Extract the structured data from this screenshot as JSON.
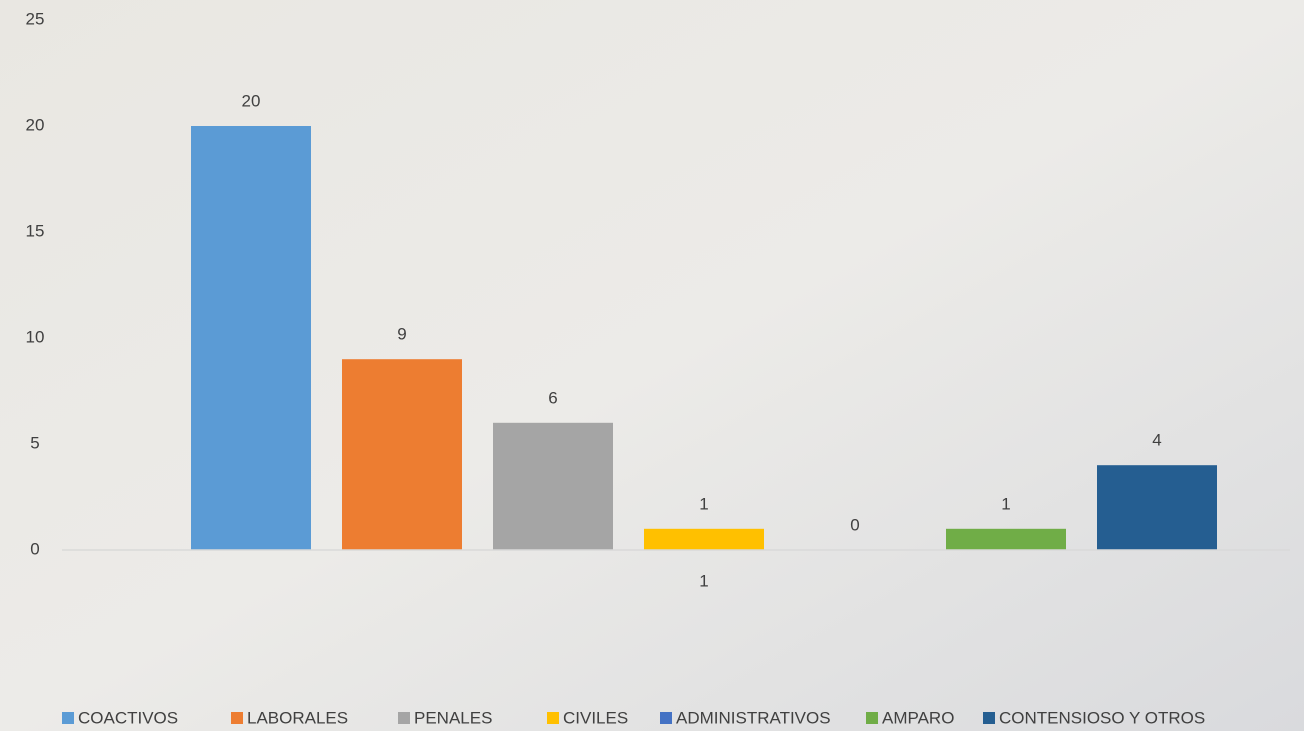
{
  "chart_data": {
    "type": "bar",
    "categories": [
      "1"
    ],
    "series": [
      {
        "name": "COACTIVOS",
        "color": "#5b9bd5",
        "values": [
          20
        ]
      },
      {
        "name": "LABORALES",
        "color": "#ed7d31",
        "values": [
          9
        ]
      },
      {
        "name": "PENALES",
        "color": "#a5a5a5",
        "values": [
          6
        ]
      },
      {
        "name": "CIVILES",
        "color": "#ffc000",
        "values": [
          1
        ]
      },
      {
        "name": "ADMINISTRATIVOS",
        "color": "#4472c4",
        "values": [
          0
        ]
      },
      {
        "name": "AMPARO",
        "color": "#70ad47",
        "values": [
          1
        ]
      },
      {
        "name": "CONTENSIOSO Y OTROS",
        "color": "#255e91",
        "values": [
          4
        ]
      }
    ],
    "ylim": [
      0,
      25
    ],
    "yticks": [
      0,
      5,
      10,
      15,
      20,
      25
    ],
    "grid": false,
    "legend": "bottom"
  }
}
